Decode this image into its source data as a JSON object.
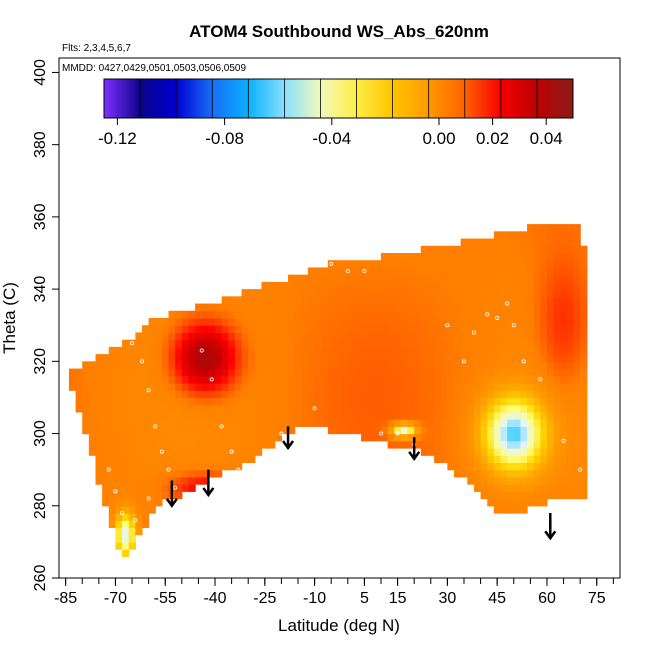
{
  "chart_data": {
    "type": "heatmap",
    "title": "ATOM4 Southbound WS_Abs_620nm",
    "annotations": [
      "Flts: 2,3,4,5,6,7",
      "MMDD: 0427,0429,0501,0503,0506,0509"
    ],
    "xlabel": "Latitude (deg N)",
    "ylabel": "Theta (C)",
    "xlim": [
      -87,
      82
    ],
    "ylim": [
      260,
      404
    ],
    "x_ticks": [
      -85,
      -70,
      -55,
      -40,
      -25,
      -10,
      5,
      15,
      30,
      45,
      60,
      75
    ],
    "x_tick_labels": [
      "-85",
      "-70",
      "-55",
      "-40",
      "-25",
      "-10",
      "5",
      "15",
      "30",
      "45",
      "60",
      "75"
    ],
    "y_ticks": [
      260,
      280,
      300,
      320,
      340,
      360,
      380,
      400
    ],
    "y_tick_labels": [
      "260",
      "280",
      "300",
      "320",
      "340",
      "360",
      "380",
      "400"
    ],
    "grid": false,
    "colorbar": {
      "range": [
        -0.125,
        0.05
      ],
      "ticks": [
        -0.12,
        -0.08,
        -0.04,
        0.0,
        0.02,
        0.04
      ],
      "tick_labels": [
        "-0.12",
        "-0.08",
        "-0.04",
        "0.00",
        "0.02",
        "0.04"
      ],
      "colors": [
        "#7f2fff",
        "#00007f",
        "#0000e0",
        "#1e90ff",
        "#00bfff",
        "#e0f4ff",
        "#ffff80",
        "#ffd700",
        "#ffa500",
        "#ff7f00",
        "#ff0000",
        "#c00000",
        "#8b1a1a"
      ]
    },
    "background_value": 0.006,
    "features": [
      {
        "name": "high",
        "lat": -43,
        "theta": 321,
        "value": 0.045
      },
      {
        "name": "low",
        "lat": 50,
        "theta": 300,
        "value": -0.06
      },
      {
        "name": "low",
        "lat": 17,
        "theta": 301,
        "value": -0.05
      },
      {
        "name": "low",
        "lat": -67,
        "theta": 272,
        "value": -0.05
      },
      {
        "name": "high",
        "lat": -43,
        "theta": 285,
        "value": 0.024
      },
      {
        "name": "high",
        "lat": 65,
        "theta": 330,
        "value": 0.018
      }
    ],
    "arrows": [
      {
        "lat": -53,
        "theta_top": 287,
        "theta_tip": 280
      },
      {
        "lat": -42,
        "theta_top": 290,
        "theta_tip": 283
      },
      {
        "lat": -18,
        "theta_top": 302,
        "theta_tip": 296
      },
      {
        "lat": 20,
        "theta_top": 299,
        "theta_tip": 293
      },
      {
        "lat": 61,
        "theta_top": 278,
        "theta_tip": 271
      }
    ],
    "samples": [
      [
        -65,
        325
      ],
      [
        -62,
        320
      ],
      [
        -60,
        312
      ],
      [
        -58,
        302
      ],
      [
        -56,
        295
      ],
      [
        -54,
        290
      ],
      [
        -52,
        285
      ],
      [
        -50,
        280
      ],
      [
        -48,
        275
      ],
      [
        -44,
        323
      ],
      [
        -41,
        315
      ],
      [
        -38,
        302
      ],
      [
        -35,
        295
      ],
      [
        -33,
        290
      ],
      [
        -30,
        287
      ],
      [
        -45,
        285
      ],
      [
        -20,
        300
      ],
      [
        -10,
        307
      ],
      [
        -5,
        347
      ],
      [
        0,
        345
      ],
      [
        5,
        345
      ],
      [
        10,
        300
      ],
      [
        15,
        300
      ],
      [
        20,
        297
      ],
      [
        25,
        293
      ],
      [
        30,
        330
      ],
      [
        35,
        320
      ],
      [
        38,
        328
      ],
      [
        42,
        333
      ],
      [
        45,
        332
      ],
      [
        48,
        336
      ],
      [
        50,
        330
      ],
      [
        53,
        320
      ],
      [
        58,
        315
      ],
      [
        65,
        298
      ],
      [
        70,
        290
      ],
      [
        -68,
        278
      ],
      [
        -70,
        284
      ],
      [
        -72,
        290
      ],
      [
        -64,
        276
      ],
      [
        -60,
        282
      ]
    ]
  }
}
